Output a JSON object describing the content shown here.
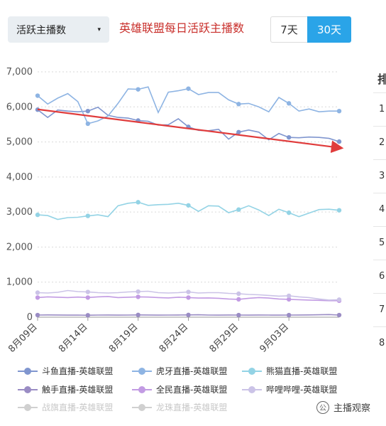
{
  "controls": {
    "metric_select": "活跃主播数",
    "metric_caret": "▾",
    "range_buttons": [
      {
        "label": "7天",
        "active": false
      },
      {
        "label": "30天",
        "active": true
      }
    ]
  },
  "chart_data": {
    "type": "line",
    "title": "英雄联盟每日活跃主播数",
    "ylim": [
      0,
      7000
    ],
    "yticks": [
      "0",
      "1,000",
      "2,000",
      "3,000",
      "4,000",
      "5,000",
      "6,000",
      "7,000"
    ],
    "ytick_values": [
      0,
      1000,
      2000,
      3000,
      4000,
      5000,
      6000,
      7000
    ],
    "xtick_labels": [
      "8月09日",
      "8月14日",
      "8月19日",
      "8月24日",
      "8月29日",
      "9月03日"
    ],
    "xtick_index": [
      0,
      5,
      10,
      15,
      20,
      25
    ],
    "n_points": 31,
    "marker_every": 5,
    "legend_position": "bottom",
    "series": [
      {
        "name": "斗鱼直播-英雄联盟",
        "color": "#8096cf",
        "visible": true,
        "values": [
          5920,
          5700,
          5910,
          5880,
          5860,
          5880,
          5990,
          5760,
          5700,
          5680,
          5610,
          5590,
          5480,
          5490,
          5660,
          5430,
          5330,
          5320,
          5360,
          5080,
          5280,
          5340,
          5280,
          5060,
          5240,
          5130,
          5120,
          5140,
          5130,
          5100,
          5010
        ]
      },
      {
        "name": "虎牙直播-英雄联盟",
        "color": "#8eb4e3",
        "visible": true,
        "values": [
          6320,
          6080,
          6250,
          6380,
          6150,
          5520,
          5600,
          5740,
          6100,
          6510,
          6500,
          6570,
          5840,
          6420,
          6460,
          6520,
          6350,
          6410,
          6410,
          6200,
          6080,
          6100,
          6000,
          5860,
          6270,
          6100,
          5880,
          5940,
          5860,
          5880,
          5880
        ]
      },
      {
        "name": "熊猫直播-英雄联盟",
        "color": "#93d3e5",
        "visible": true,
        "values": [
          2920,
          2900,
          2790,
          2840,
          2850,
          2890,
          2920,
          2870,
          3180,
          3250,
          3280,
          3190,
          3210,
          3220,
          3250,
          3190,
          3020,
          3180,
          3170,
          2980,
          3070,
          3180,
          3060,
          2900,
          3080,
          2980,
          2870,
          2970,
          3070,
          3080,
          3050
        ]
      },
      {
        "name": "触手直播-英雄联盟",
        "color": "#9a8cc4",
        "visible": true,
        "values": [
          60,
          65,
          62,
          58,
          60,
          55,
          60,
          62,
          58,
          60,
          65,
          62,
          58,
          60,
          62,
          65,
          70,
          60,
          58,
          62,
          60,
          58,
          62,
          60,
          58,
          60,
          62,
          65,
          70,
          75,
          60
        ]
      },
      {
        "name": "全民直播-英雄联盟",
        "color": "#c29be3",
        "visible": true,
        "values": [
          560,
          580,
          570,
          560,
          575,
          560,
          580,
          590,
          560,
          570,
          580,
          575,
          560,
          550,
          570,
          560,
          545,
          550,
          540,
          520,
          510,
          540,
          560,
          545,
          520,
          510,
          500,
          490,
          480,
          470,
          470
        ]
      },
      {
        "name": "哔哩哔哩-英雄联盟",
        "color": "#cbc3e7",
        "visible": true,
        "values": [
          700,
          690,
          710,
          760,
          730,
          720,
          700,
          690,
          700,
          720,
          730,
          740,
          700,
          690,
          700,
          720,
          690,
          700,
          700,
          680,
          670,
          650,
          640,
          620,
          600,
          610,
          580,
          560,
          520,
          490,
          500
        ]
      },
      {
        "name": "战旗直播-英雄联盟",
        "color": "#d0d0d0",
        "visible": false,
        "values": []
      },
      {
        "name": "龙珠直播-英雄联盟",
        "color": "#d0d0d0",
        "visible": false,
        "values": []
      }
    ],
    "trend_arrow": {
      "color": "#e03c3c",
      "from": {
        "x_index": 0,
        "y": 5930
      },
      "to": {
        "x_index": 30,
        "y": 4830
      }
    }
  },
  "ranking": {
    "header": "排",
    "numbers": [
      "1",
      "2",
      "3",
      "4",
      "5",
      "6",
      "7",
      "8"
    ]
  },
  "watermark": {
    "logo_glyph": "公",
    "text": "主播观察"
  }
}
